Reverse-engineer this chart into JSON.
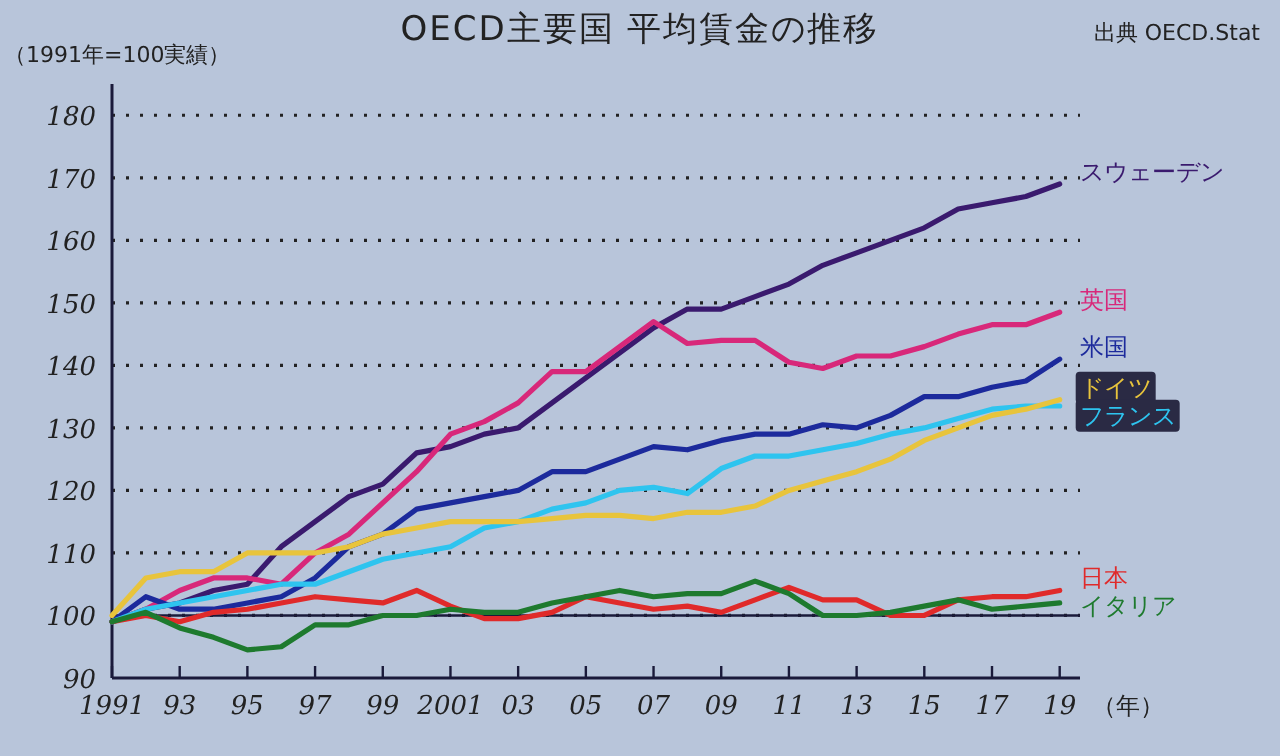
{
  "chart_data": {
    "type": "line",
    "title": "OECD主要国 平均賃金の推移",
    "ylabel": "（1991年=100実績）",
    "xlabel": "（年）",
    "annotations": [
      "出典 OECD.Stat"
    ],
    "x": [
      1991,
      1992,
      1993,
      1994,
      1995,
      1996,
      1997,
      1998,
      1999,
      2000,
      2001,
      2002,
      2003,
      2004,
      2005,
      2006,
      2007,
      2008,
      2009,
      2010,
      2011,
      2012,
      2013,
      2014,
      2015,
      2016,
      2017,
      2018,
      2019
    ],
    "xlim": [
      1991,
      2019.6
    ],
    "xticks": [
      {
        "value": 1991,
        "label": "1991"
      },
      {
        "value": 1993,
        "label": "93"
      },
      {
        "value": 1995,
        "label": "95"
      },
      {
        "value": 1997,
        "label": "97"
      },
      {
        "value": 1999,
        "label": "99"
      },
      {
        "value": 2001,
        "label": "2001"
      },
      {
        "value": 2003,
        "label": "03"
      },
      {
        "value": 2005,
        "label": "05"
      },
      {
        "value": 2007,
        "label": "07"
      },
      {
        "value": 2009,
        "label": "09"
      },
      {
        "value": 2011,
        "label": "11"
      },
      {
        "value": 2013,
        "label": "13"
      },
      {
        "value": 2015,
        "label": "15"
      },
      {
        "value": 2017,
        "label": "17"
      },
      {
        "value": 2019,
        "label": "19"
      }
    ],
    "ylim": [
      90,
      185
    ],
    "yticks": [
      90,
      100,
      110,
      120,
      130,
      140,
      150,
      160,
      170,
      180
    ],
    "grid": "y",
    "ref_lines": [
      {
        "axis": "y",
        "value": 100,
        "color": "#1a1a3a",
        "line_style": "solid"
      }
    ],
    "legend": false,
    "marker": "none",
    "line_style": "solid",
    "series": [
      {
        "name": "スウェーデン",
        "color": "#3a1a6e",
        "values": [
          99,
          101,
          102,
          104,
          105,
          111,
          115,
          119,
          121,
          126,
          127,
          129,
          130,
          134,
          138,
          142,
          146,
          149,
          149,
          151,
          153,
          156,
          158,
          160,
          162,
          165,
          166,
          167,
          169
        ]
      },
      {
        "name": "英国",
        "color": "#d8287a",
        "values": [
          99,
          101,
          104,
          106,
          106,
          105,
          110,
          113,
          118,
          123,
          129,
          131,
          134,
          139,
          139,
          143,
          147,
          143.5,
          144,
          144,
          140.5,
          139.5,
          141.5,
          141.5,
          143,
          145,
          146.5,
          146.5,
          148.5
        ]
      },
      {
        "name": "米国",
        "color": "#1c2a9c",
        "values": [
          99,
          103,
          101,
          101,
          102,
          103,
          106,
          111,
          113,
          117,
          118,
          119,
          120,
          123,
          123,
          125,
          127,
          126.5,
          128,
          129,
          129,
          130.5,
          130,
          132,
          135,
          135,
          136.5,
          137.5,
          141
        ]
      },
      {
        "name": "フランス",
        "color": "#2ec4ef",
        "values": [
          99,
          101,
          102,
          103,
          104,
          105,
          105,
          107,
          109,
          110,
          111,
          114,
          115,
          117,
          118,
          120,
          120.5,
          119.5,
          123.5,
          125.5,
          125.5,
          126.5,
          127.5,
          129,
          130,
          131.5,
          133,
          133.5,
          133.5
        ]
      },
      {
        "name": "ドイツ",
        "color": "#e8c43c",
        "values": [
          100,
          106,
          107,
          107,
          110,
          110,
          110,
          111,
          113,
          114,
          115,
          115,
          115,
          115.5,
          116,
          116,
          115.5,
          116.5,
          116.5,
          117.5,
          120,
          121.5,
          123,
          125,
          128,
          130,
          132,
          133,
          134.5
        ]
      },
      {
        "name": "日本",
        "color": "#e02a2a",
        "values": [
          99,
          100,
          99,
          100.5,
          101,
          102,
          103,
          102.5,
          102,
          104,
          101.5,
          99.5,
          99.5,
          100.5,
          103,
          102,
          101,
          101.5,
          100.5,
          102.5,
          104.5,
          102.5,
          102.5,
          100,
          100,
          102.5,
          103,
          103,
          104
        ]
      },
      {
        "name": "イタリア",
        "color": "#1e7a2e",
        "values": [
          99,
          100.5,
          98,
          96.5,
          94.5,
          95,
          98.5,
          98.5,
          100,
          100,
          101,
          100.5,
          100.5,
          102,
          103,
          104,
          103,
          103.5,
          103.5,
          105.5,
          103.5,
          100,
          100,
          100.5,
          101.5,
          102.5,
          101,
          101.5,
          102
        ]
      }
    ]
  }
}
